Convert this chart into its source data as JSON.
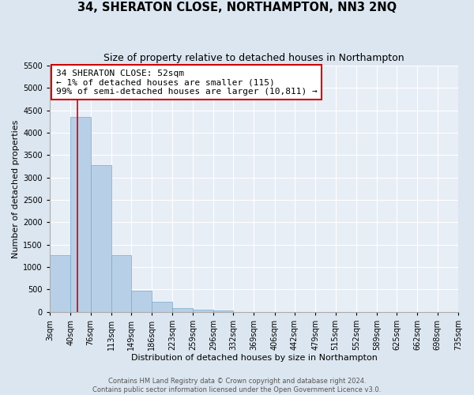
{
  "title": "34, SHERATON CLOSE, NORTHAMPTON, NN3 2NQ",
  "subtitle": "Size of property relative to detached houses in Northampton",
  "xlabel": "Distribution of detached houses by size in Northampton",
  "ylabel": "Number of detached properties",
  "bar_edges": [
    3,
    40,
    76,
    113,
    149,
    186,
    223,
    259,
    296,
    332,
    369,
    406,
    442,
    479,
    515,
    552,
    589,
    625,
    662,
    698,
    735
  ],
  "bar_heights": [
    1270,
    4350,
    3280,
    1270,
    480,
    230,
    90,
    55,
    35,
    0,
    0,
    0,
    0,
    0,
    0,
    0,
    0,
    0,
    0,
    0
  ],
  "bar_color": "#b8cfe8",
  "bar_edgecolor": "#7aaac8",
  "property_line_x": 52,
  "property_line_color": "#cc0000",
  "ylim_max": 5500,
  "yticks": [
    0,
    500,
    1000,
    1500,
    2000,
    2500,
    3000,
    3500,
    4000,
    4500,
    5000,
    5500
  ],
  "xtick_labels": [
    "3sqm",
    "40sqm",
    "76sqm",
    "113sqm",
    "149sqm",
    "186sqm",
    "223sqm",
    "259sqm",
    "296sqm",
    "332sqm",
    "369sqm",
    "406sqm",
    "442sqm",
    "479sqm",
    "515sqm",
    "552sqm",
    "589sqm",
    "625sqm",
    "662sqm",
    "698sqm",
    "735sqm"
  ],
  "annotation_line1": "34 SHERATON CLOSE: 52sqm",
  "annotation_line2": "← 1% of detached houses are smaller (115)",
  "annotation_line3": "99% of semi-detached houses are larger (10,811) →",
  "footer_line1": "Contains HM Land Registry data © Crown copyright and database right 2024.",
  "footer_line2": "Contains public sector information licensed under the Open Government Licence v3.0.",
  "background_color": "#dce6f0",
  "plot_background_color": "#e8eef6",
  "grid_color": "#ffffff",
  "title_fontsize": 10.5,
  "subtitle_fontsize": 9,
  "axis_label_fontsize": 8,
  "tick_fontsize": 7,
  "annotation_fontsize": 8,
  "footer_fontsize": 6
}
